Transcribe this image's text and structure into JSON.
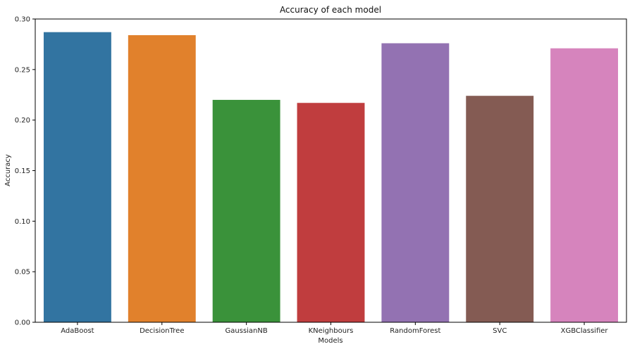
{
  "chart_data": {
    "type": "bar",
    "title": "Accuracy of each model",
    "xlabel": "Models",
    "ylabel": "Accuracy",
    "categories": [
      "AdaBoost",
      "DecisionTree",
      "GaussianNB",
      "KNeighbours",
      "RandomForest",
      "SVC",
      "XGBClassifier"
    ],
    "values": [
      0.287,
      0.284,
      0.22,
      0.217,
      0.276,
      0.224,
      0.271
    ],
    "colors": [
      "#3274a1",
      "#e1812c",
      "#3a923a",
      "#c03d3e",
      "#9372b2",
      "#845b53",
      "#d684bd"
    ],
    "ylim": [
      0,
      0.3
    ],
    "yticks": [
      "0.00",
      "0.05",
      "0.10",
      "0.15",
      "0.20",
      "0.25",
      "0.30"
    ],
    "grid": false,
    "legend": "none"
  }
}
